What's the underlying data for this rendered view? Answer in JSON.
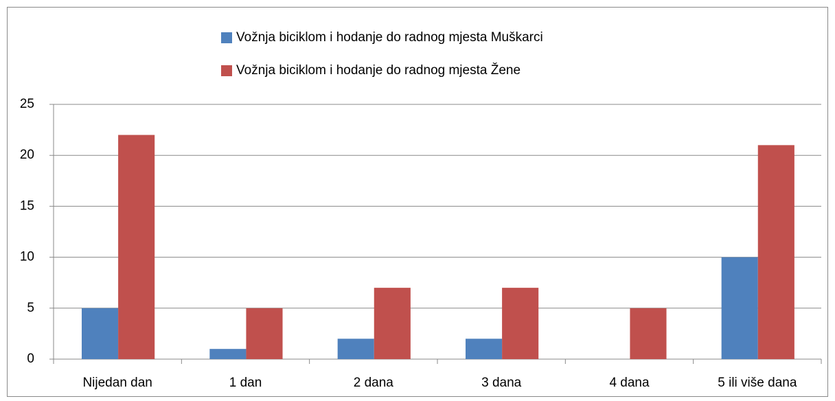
{
  "chart_data": {
    "type": "bar",
    "categories": [
      "Nijedan dan",
      "1 dan",
      "2 dana",
      "3 dana",
      "4 dana",
      "5 ili više dana"
    ],
    "series": [
      {
        "name": "Vožnja biciklom i hodanje do radnog mjesta Muškarci",
        "color": "#4f81bd",
        "values": [
          5,
          1,
          2,
          2,
          0,
          10
        ]
      },
      {
        "name": "Vožnja biciklom i hodanje do radnog mjesta Žene",
        "color": "#c0504d",
        "values": [
          22,
          5,
          7,
          7,
          5,
          21
        ]
      }
    ],
    "ylim": [
      0,
      25
    ],
    "yticks": [
      0,
      5,
      10,
      15,
      20,
      25
    ],
    "grid": true,
    "legend": "top"
  }
}
